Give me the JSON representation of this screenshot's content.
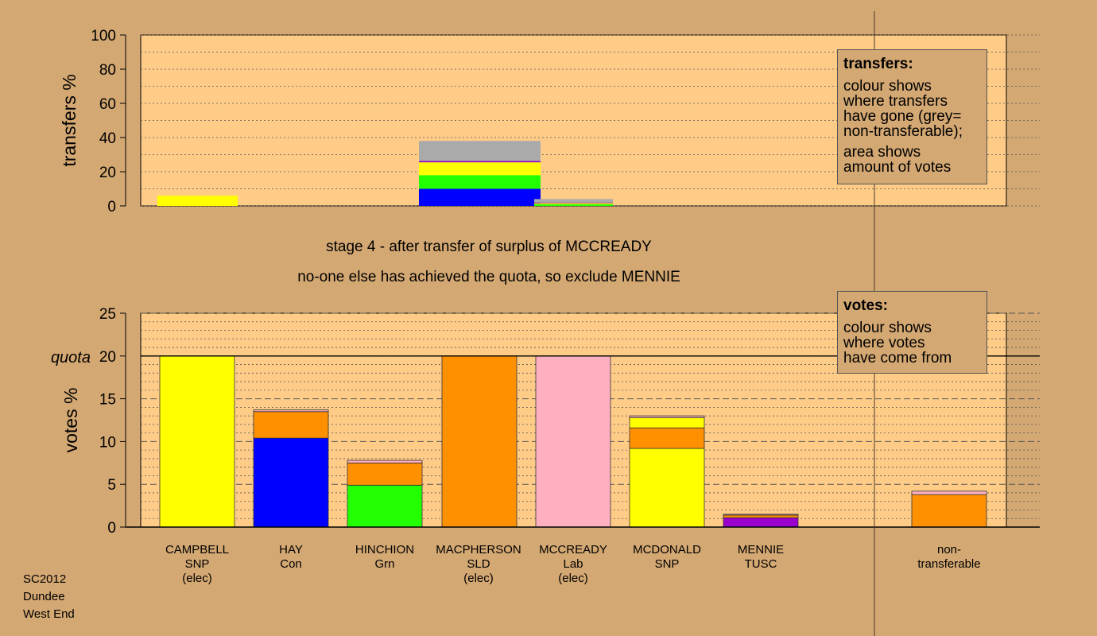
{
  "stage_title_1": "stage 4 - after transfer of surplus of MCCREADY",
  "stage_title_2": "no-one else has achieved the quota, so exclude MENNIE",
  "footer": [
    "SC2012",
    "Dundee",
    "West End"
  ],
  "legend_transfers": {
    "heading": "transfers:",
    "lines_a": [
      "colour shows",
      "where transfers",
      "have gone (grey=",
      "non-transferable);"
    ],
    "lines_b": [
      "area shows",
      "amount of votes"
    ]
  },
  "legend_votes": {
    "heading": "votes:",
    "lines": [
      "colour shows",
      "where votes",
      "have come from"
    ]
  },
  "colors": {
    "background": "#d4a873",
    "plot_background": "#ffcc88",
    "SNP": "#ffff00",
    "Con": "#0000ff",
    "Grn": "#22ff00",
    "SLD": "#ff9000",
    "Lab": "#ffb0c0",
    "TUSC": "#9900cc",
    "non_transferable": "#aaaaaa"
  },
  "chart_data": [
    {
      "type": "bar",
      "stacked": true,
      "title": "",
      "xlabel": "",
      "ylabel": "transfers %",
      "ylim": [
        0,
        100
      ],
      "yticks": [
        0,
        20,
        40,
        60,
        80,
        100
      ],
      "grid": true,
      "bars": [
        {
          "segments": [
            {
              "party": "SNP",
              "value": 6
            }
          ]
        },
        {
          "segments": [
            {
              "party": "Con",
              "value": 10
            },
            {
              "party": "Grn",
              "value": 8
            },
            {
              "party": "SNP",
              "value": 7.5
            },
            {
              "party": "TUSC",
              "value": 0.8
            },
            {
              "party": "non_transferable",
              "value": 11.7
            }
          ]
        },
        {
          "segments": [
            {
              "party": "Grn",
              "value": 1
            },
            {
              "party": "SNP",
              "value": 0.6
            },
            {
              "party": "TUSC",
              "value": 0.4
            },
            {
              "party": "non_transferable",
              "value": 2
            }
          ]
        }
      ]
    },
    {
      "type": "bar",
      "stacked": true,
      "title": "",
      "xlabel": "",
      "ylabel": "votes %",
      "ylim": [
        0,
        25
      ],
      "yticks": [
        0,
        5,
        10,
        15,
        20,
        25
      ],
      "quota": 20,
      "quota_label": "quota",
      "grid": true,
      "categories": [
        {
          "name": "CAMPBELL",
          "party": "SNP",
          "note": "(elec)"
        },
        {
          "name": "HAY",
          "party": "Con",
          "note": ""
        },
        {
          "name": "HINCHION",
          "party": "Grn",
          "note": ""
        },
        {
          "name": "MACPHERSON",
          "party": "SLD",
          "note": "(elec)"
        },
        {
          "name": "MCCREADY",
          "party": "Lab",
          "note": "(elec)"
        },
        {
          "name": "MCDONALD",
          "party": "SNP",
          "note": ""
        },
        {
          "name": "MENNIE",
          "party": "TUSC",
          "note": ""
        },
        {
          "name": "non-",
          "party": "transferable",
          "note": ""
        }
      ],
      "bars": [
        [
          {
            "party": "SNP",
            "value": 20
          }
        ],
        [
          {
            "party": "Con",
            "value": 10.4
          },
          {
            "party": "SLD",
            "value": 3.1
          },
          {
            "party": "Lab",
            "value": 0.2
          }
        ],
        [
          {
            "party": "Grn",
            "value": 4.9
          },
          {
            "party": "SLD",
            "value": 2.6
          },
          {
            "party": "Lab",
            "value": 0.3
          }
        ],
        [
          {
            "party": "SLD",
            "value": 20
          }
        ],
        [
          {
            "party": "Lab",
            "value": 20
          }
        ],
        [
          {
            "party": "SNP",
            "value": 9.2
          },
          {
            "party": "SLD",
            "value": 2.4
          },
          {
            "party": "SNP",
            "value": 1.2
          },
          {
            "party": "Lab",
            "value": 0.2
          }
        ],
        [
          {
            "party": "TUSC",
            "value": 1.1
          },
          {
            "party": "SLD",
            "value": 0.3
          },
          {
            "party": "Lab",
            "value": 0.1
          }
        ],
        [
          {
            "party": "SLD",
            "value": 3.8
          },
          {
            "party": "Lab",
            "value": 0.4
          }
        ]
      ]
    }
  ]
}
